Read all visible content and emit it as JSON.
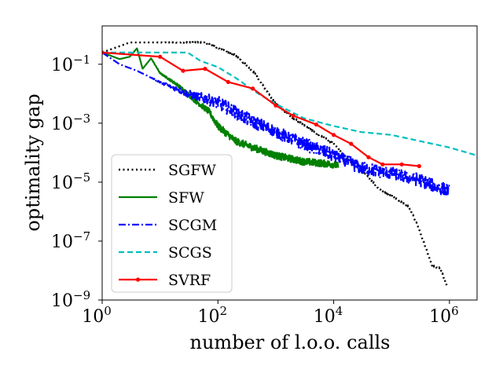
{
  "chart_data": {
    "type": "line",
    "title": "",
    "xlabel": "number of l.o.o. calls",
    "ylabel": "optimality gap",
    "xscale": "log",
    "yscale": "log",
    "xlim": [
      1,
      3000000
    ],
    "ylim": [
      1e-09,
      2
    ],
    "xticks": [
      {
        "base": "10",
        "exp": "0",
        "value": 1
      },
      {
        "base": "10",
        "exp": "2",
        "value": 100
      },
      {
        "base": "10",
        "exp": "4",
        "value": 10000
      },
      {
        "base": "10",
        "exp": "6",
        "value": 1000000
      }
    ],
    "yticks": [
      {
        "base": "10",
        "exp": "−1",
        "value": 0.1
      },
      {
        "base": "10",
        "exp": "−3",
        "value": 0.001
      },
      {
        "base": "10",
        "exp": "−5",
        "value": 1e-05
      },
      {
        "base": "10",
        "exp": "−7",
        "value": 1e-07
      },
      {
        "base": "10",
        "exp": "−9",
        "value": 1e-09
      }
    ],
    "legend_position": "lower-left",
    "series": [
      {
        "name": "SGFW",
        "color": "#000000",
        "style": "dotted",
        "markers": false,
        "noise": 0.03,
        "points": [
          [
            1,
            0.25
          ],
          [
            3,
            0.55
          ],
          [
            10,
            0.55
          ],
          [
            60,
            0.55
          ],
          [
            100,
            0.35
          ],
          [
            200,
            0.2
          ],
          [
            400,
            0.06
          ],
          [
            700,
            0.012
          ],
          [
            1000,
            0.0045
          ],
          [
            2000,
            0.0015
          ],
          [
            4000,
            0.0006
          ],
          [
            10000,
            0.0002
          ],
          [
            20000,
            4.5e-05
          ],
          [
            40000,
            1.5e-05
          ],
          [
            60000,
            6e-06
          ],
          [
            100000,
            3.5e-06
          ],
          [
            200000,
            1.5e-06
          ],
          [
            300000,
            2.5e-07
          ],
          [
            400000,
            5e-08
          ],
          [
            500000,
            1.5e-08
          ],
          [
            700000,
            1.2e-08
          ],
          [
            900000,
            3e-09
          ]
        ]
      },
      {
        "name": "SFW",
        "color": "#008000",
        "style": "solid",
        "markers": false,
        "noise": 0.12,
        "points": [
          [
            1,
            0.25
          ],
          [
            2,
            0.15
          ],
          [
            3,
            0.18
          ],
          [
            4,
            0.35
          ],
          [
            5,
            0.07
          ],
          [
            7,
            0.16
          ],
          [
            10,
            0.05
          ],
          [
            20,
            0.02
          ],
          [
            40,
            0.006
          ],
          [
            70,
            0.0025
          ],
          [
            100,
            0.0008
          ],
          [
            200,
            0.00025
          ],
          [
            400,
            0.00015
          ],
          [
            1000,
            8e-05
          ],
          [
            3000,
            5e-05
          ],
          [
            10000,
            4e-05
          ],
          [
            12000,
            3.5e-05
          ]
        ]
      },
      {
        "name": "SCGM",
        "color": "#0000ff",
        "style": "dashdot",
        "markers": false,
        "noise": 0.22,
        "points": [
          [
            1,
            0.25
          ],
          [
            2,
            0.1
          ],
          [
            4,
            0.06
          ],
          [
            10,
            0.025
          ],
          [
            30,
            0.01
          ],
          [
            100,
            0.005
          ],
          [
            300,
            0.0015
          ],
          [
            1000,
            0.0005
          ],
          [
            3000,
            0.0002
          ],
          [
            10000,
            8e-05
          ],
          [
            30000,
            3e-05
          ],
          [
            100000,
            2e-05
          ],
          [
            300000,
            1.2e-05
          ],
          [
            600000,
            7e-06
          ],
          [
            1000000,
            5e-06
          ]
        ]
      },
      {
        "name": "SCGS",
        "color": "#00bfbf",
        "style": "dashed",
        "markers": false,
        "noise": 0,
        "points": [
          [
            1,
            0.25
          ],
          [
            10,
            0.25
          ],
          [
            30,
            0.25
          ],
          [
            50,
            0.13
          ],
          [
            100,
            0.08
          ],
          [
            200,
            0.035
          ],
          [
            500,
            0.01
          ],
          [
            1000,
            0.0045
          ],
          [
            3000,
            0.0015
          ],
          [
            10000,
            0.0008
          ],
          [
            30000,
            0.0005
          ],
          [
            100000,
            0.0004
          ],
          [
            300000,
            0.00025
          ],
          [
            1000000,
            0.00015
          ],
          [
            3000000,
            8e-05
          ]
        ]
      },
      {
        "name": "SVRF",
        "color": "#ff0000",
        "style": "solid",
        "markers": true,
        "noise": 0,
        "points": [
          [
            1,
            0.25
          ],
          [
            10,
            0.18
          ],
          [
            25,
            0.06
          ],
          [
            60,
            0.07
          ],
          [
            150,
            0.025
          ],
          [
            400,
            0.015
          ],
          [
            1000,
            0.004
          ],
          [
            2000,
            0.0018
          ],
          [
            5000,
            0.0009
          ],
          [
            10000,
            0.0004
          ],
          [
            20000,
            0.0002
          ],
          [
            40000,
            7e-05
          ],
          [
            70000,
            4e-05
          ],
          [
            150000,
            4e-05
          ],
          [
            300000,
            3.5e-05
          ]
        ]
      }
    ]
  }
}
